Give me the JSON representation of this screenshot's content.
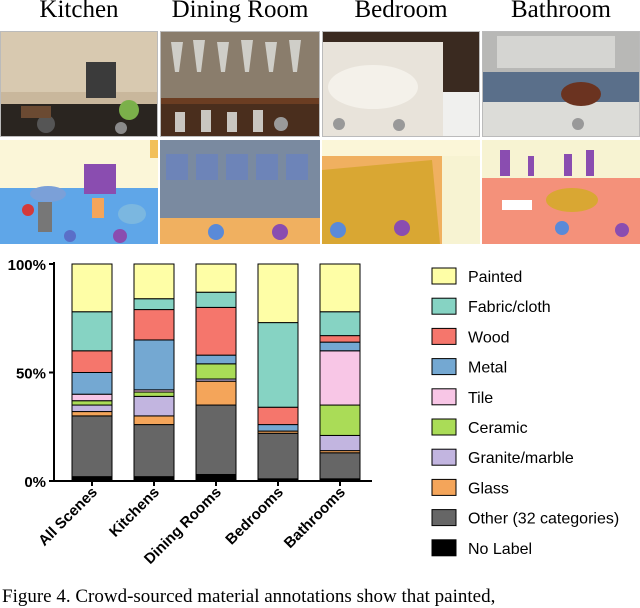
{
  "figure": {
    "column_titles": [
      "Kitchen",
      "Dining Room",
      "Bedroom",
      "Bathroom"
    ],
    "caption": "Figure 4. Crowd-sourced material annotations show that painted,"
  },
  "chart_data": {
    "type": "bar",
    "stacked": true,
    "categories": [
      "All Scenes",
      "Kitchens",
      "Dining Rooms",
      "Bedrooms",
      "Bathrooms"
    ],
    "ytick_labels": [
      "0%",
      "50%",
      "100%"
    ],
    "ylim": [
      0,
      100
    ],
    "legend_position": "right",
    "series": [
      {
        "name": "No Label",
        "color": "#000000",
        "values": [
          2,
          2,
          3,
          1,
          1
        ]
      },
      {
        "name": "Other (32 categories)",
        "color": "#666666",
        "values": [
          28,
          24,
          32,
          21,
          12
        ]
      },
      {
        "name": "Glass",
        "color": "#f4a55a",
        "values": [
          2,
          4,
          11,
          1,
          1
        ]
      },
      {
        "name": "Granite/marble",
        "color": "#c2b5e0",
        "values": [
          3,
          9,
          1,
          0,
          7
        ]
      },
      {
        "name": "Ceramic",
        "color": "#aadc57",
        "values": [
          2,
          2,
          7,
          0,
          14
        ]
      },
      {
        "name": "Tile",
        "color": "#f8c6e6",
        "values": [
          3,
          1,
          0,
          0,
          25
        ]
      },
      {
        "name": "Metal",
        "color": "#74a8d2",
        "values": [
          10,
          23,
          4,
          3,
          4
        ]
      },
      {
        "name": "Wood",
        "color": "#f5766c",
        "values": [
          10,
          14,
          22,
          8,
          3
        ]
      },
      {
        "name": "Fabric/cloth",
        "color": "#86d3c3",
        "values": [
          18,
          5,
          7,
          39,
          11
        ]
      },
      {
        "name": "Painted",
        "color": "#fefea6",
        "values": [
          22,
          16,
          13,
          27,
          22
        ]
      }
    ]
  }
}
